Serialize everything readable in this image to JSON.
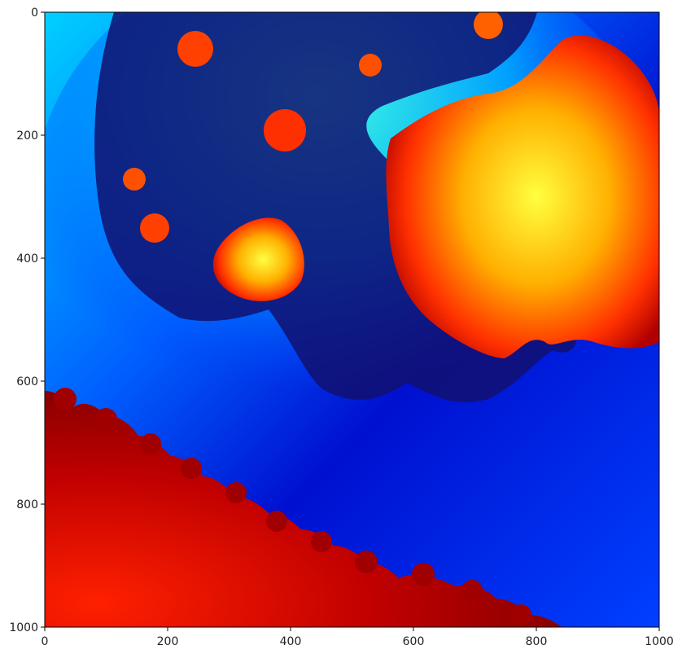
{
  "chart_data": {
    "type": "heatmap",
    "description_of_content": "",
    "title": "",
    "xlabel": "",
    "ylabel": "",
    "xlim": [
      0,
      1000
    ],
    "ylim": [
      1000,
      0
    ],
    "y_axis_inverted": true,
    "colormap": "jet",
    "grid": false,
    "legend": "none",
    "x_ticks": [
      0,
      200,
      400,
      600,
      800,
      1000
    ],
    "y_ticks": [
      0,
      200,
      400,
      600,
      800,
      1000
    ],
    "x_tick_labels": [
      "0",
      "200",
      "400",
      "600",
      "800",
      "1000"
    ],
    "y_tick_labels": [
      "0",
      "200",
      "400",
      "600",
      "800",
      "1000"
    ],
    "regions": [
      {
        "name": "lower-left-bulbs",
        "dominant_color": "#b00000"
      },
      {
        "name": "upper-right-bulb",
        "dominant_color": "#ffd000"
      },
      {
        "name": "background-field",
        "dominant_color": "#0040ff"
      }
    ],
    "colors": {
      "deep_blue": "#00007f",
      "blue": "#0000ff",
      "cyan": "#00ffff",
      "yellow": "#ffff00",
      "red": "#ff0000",
      "dark_red": "#7f0000"
    }
  }
}
